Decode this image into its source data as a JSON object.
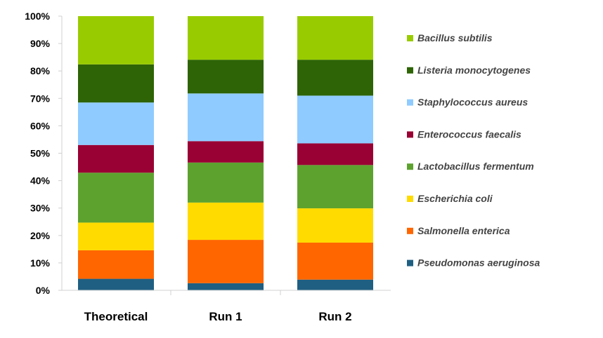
{
  "chart_data": {
    "type": "bar",
    "stacked": true,
    "categories": [
      "Theoretical",
      "Run 1",
      "Run 2"
    ],
    "ylim": [
      0,
      100
    ],
    "yticks": [
      "0%",
      "10%",
      "20%",
      "30%",
      "40%",
      "50%",
      "60%",
      "70%",
      "80%",
      "90%",
      "100%"
    ],
    "ytick_values": [
      0,
      10,
      20,
      30,
      40,
      50,
      60,
      70,
      80,
      90,
      100
    ],
    "legend_position": "right",
    "grid": false,
    "series": [
      {
        "name": "Pseudomonas aeruginosa",
        "color": "#1f5f82",
        "values": [
          4.2,
          2.6,
          3.9
        ]
      },
      {
        "name": "Salmonella enterica",
        "color": "#ff6600",
        "values": [
          10.4,
          15.8,
          13.5
        ]
      },
      {
        "name": "Escherichia coli",
        "color": "#ffdb00",
        "values": [
          10.1,
          13.6,
          12.5
        ]
      },
      {
        "name": "Lactobacillus fermentum",
        "color": "#5da22f",
        "values": [
          18.2,
          14.6,
          15.8
        ]
      },
      {
        "name": "Enterococcus faecalis",
        "color": "#990033",
        "values": [
          10.1,
          7.8,
          7.9
        ]
      },
      {
        "name": "Staphylococcus aureus",
        "color": "#8fcbff",
        "values": [
          15.5,
          17.4,
          17.4
        ]
      },
      {
        "name": "Listeria monocytogenes",
        "color": "#2e6405",
        "values": [
          13.9,
          12.3,
          13.1
        ]
      },
      {
        "name": "Bacillus subtilis",
        "color": "#99cc00",
        "values": [
          17.6,
          15.9,
          15.9
        ]
      }
    ]
  }
}
